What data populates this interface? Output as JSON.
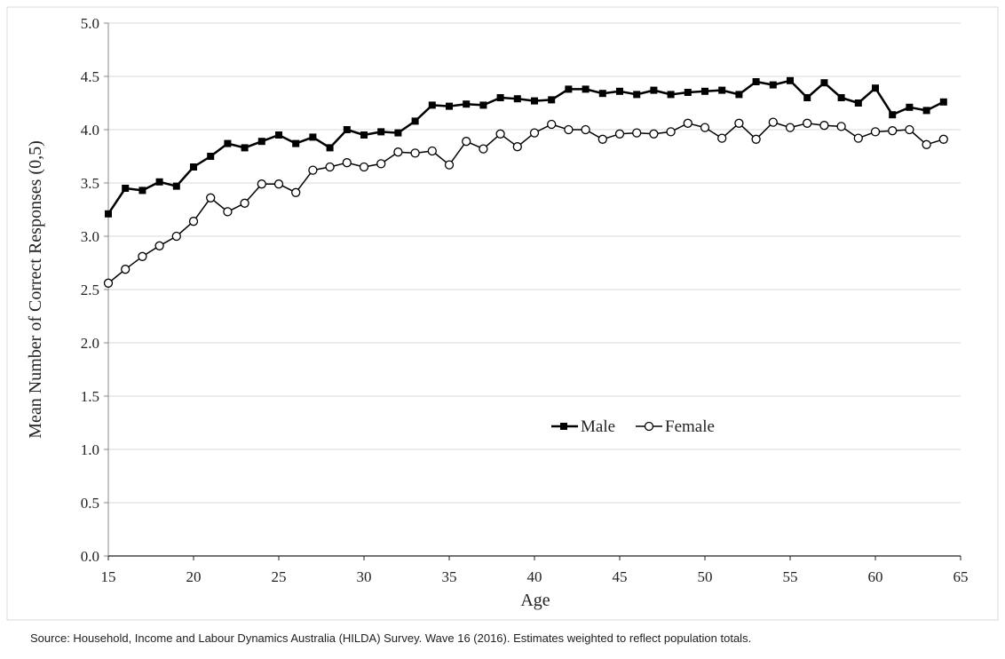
{
  "chart_data": {
    "type": "line",
    "title": "",
    "xlabel": "Age",
    "ylabel": "Mean Number of Correct Responses (0,5)",
    "xlim": [
      15,
      65
    ],
    "ylim": [
      0,
      5
    ],
    "xticks": [
      "15",
      "20",
      "25",
      "30",
      "35",
      "40",
      "45",
      "50",
      "55",
      "60",
      "65"
    ],
    "yticks": [
      "0.0",
      "0.5",
      "1.0",
      "1.5",
      "2.0",
      "2.5",
      "3.0",
      "3.5",
      "4.0",
      "4.5",
      "5.0"
    ],
    "grid": true,
    "legend": "center",
    "x": [
      15,
      16,
      17,
      18,
      19,
      20,
      21,
      22,
      23,
      24,
      25,
      26,
      27,
      28,
      29,
      30,
      31,
      32,
      33,
      34,
      35,
      36,
      37,
      38,
      39,
      40,
      41,
      42,
      43,
      44,
      45,
      46,
      47,
      48,
      49,
      50,
      51,
      52,
      53,
      54,
      55,
      56,
      57,
      58,
      59,
      60,
      61,
      62,
      63,
      64
    ],
    "series": [
      {
        "name": "Male",
        "marker": "filled-square",
        "color": "#000000",
        "values": [
          3.21,
          3.45,
          3.43,
          3.51,
          3.47,
          3.65,
          3.75,
          3.87,
          3.83,
          3.89,
          3.95,
          3.87,
          3.93,
          3.83,
          4.0,
          3.95,
          3.98,
          3.97,
          4.08,
          4.23,
          4.22,
          4.24,
          4.23,
          4.3,
          4.29,
          4.27,
          4.28,
          4.38,
          4.38,
          4.34,
          4.36,
          4.33,
          4.37,
          4.33,
          4.35,
          4.36,
          4.37,
          4.33,
          4.45,
          4.42,
          4.46,
          4.3,
          4.44,
          4.3,
          4.25,
          4.39,
          4.14,
          4.21,
          4.18,
          4.26
        ]
      },
      {
        "name": "Female",
        "marker": "open-circle",
        "color": "#000000",
        "values": [
          2.56,
          2.69,
          2.81,
          2.91,
          3.0,
          3.14,
          3.36,
          3.23,
          3.31,
          3.49,
          3.49,
          3.41,
          3.62,
          3.65,
          3.69,
          3.65,
          3.68,
          3.79,
          3.78,
          3.8,
          3.67,
          3.89,
          3.82,
          3.96,
          3.84,
          3.97,
          4.05,
          4.0,
          4.0,
          3.91,
          3.96,
          3.97,
          3.96,
          3.98,
          4.06,
          4.02,
          3.92,
          4.06,
          3.91,
          4.07,
          4.02,
          4.06,
          4.04,
          4.03,
          3.92,
          3.98,
          3.99,
          4.0,
          3.86,
          3.91
        ]
      }
    ]
  },
  "source_note": "Source: Household, Income and Labour Dynamics Australia (HILDA) Survey. Wave 16 (2016).  Estimates weighted to reflect population totals."
}
